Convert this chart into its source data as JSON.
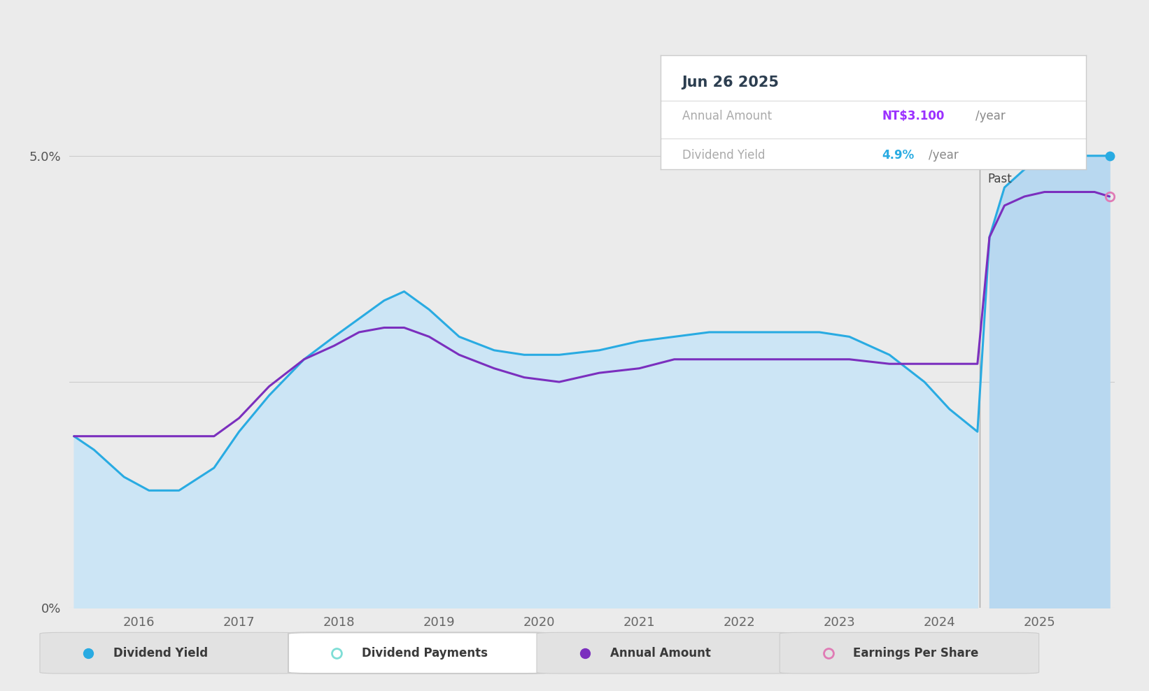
{
  "bg_color": "#ebebeb",
  "plot_bg_color": "#ebebeb",
  "dividend_yield_color": "#29ABE2",
  "dividend_yield_fill": "#d6eaf8",
  "annual_amount_color": "#7B2FBE",
  "past_x": 2024.4,
  "tooltip_date": "Jun 26 2025",
  "tooltip_annual_amount": "NT$3.100",
  "tooltip_dividend_yield": "4.9%",
  "tooltip_annual_color": "#9B30FF",
  "tooltip_yield_color": "#29ABE2",
  "legend_items": [
    {
      "label": "Dividend Yield",
      "color": "#29ABE2",
      "filled": true,
      "active": true
    },
    {
      "label": "Dividend Payments",
      "color": "#7FDED6",
      "filled": false,
      "active": false
    },
    {
      "label": "Annual Amount",
      "color": "#7B2FBE",
      "filled": true,
      "active": true
    },
    {
      "label": "Earnings Per Share",
      "color": "#e07bb5",
      "filled": false,
      "active": true
    }
  ],
  "xlim_start": 2015.3,
  "xlim_end": 2025.75,
  "ylim": [
    0.0,
    5.5
  ],
  "ytick_positions": [
    0.0,
    2.5,
    5.0
  ],
  "ytick_labels": [
    "0%",
    "",
    "5.0%"
  ],
  "xtick_years": [
    2016,
    2017,
    2018,
    2019,
    2020,
    2021,
    2022,
    2023,
    2024,
    2025
  ],
  "dividend_yield_x": [
    2015.35,
    2015.55,
    2015.85,
    2016.1,
    2016.4,
    2016.75,
    2017.0,
    2017.3,
    2017.65,
    2017.95,
    2018.2,
    2018.45,
    2018.65,
    2018.9,
    2019.2,
    2019.55,
    2019.85,
    2020.2,
    2020.6,
    2021.0,
    2021.35,
    2021.7,
    2022.0,
    2022.4,
    2022.8,
    2023.1,
    2023.5,
    2023.85,
    2024.1,
    2024.38,
    2024.5,
    2024.65,
    2024.85,
    2025.05,
    2025.3,
    2025.55,
    2025.7
  ],
  "dividend_yield_y": [
    1.9,
    1.75,
    1.45,
    1.3,
    1.3,
    1.55,
    1.95,
    2.35,
    2.75,
    3.0,
    3.2,
    3.4,
    3.5,
    3.3,
    3.0,
    2.85,
    2.8,
    2.8,
    2.85,
    2.95,
    3.0,
    3.05,
    3.05,
    3.05,
    3.05,
    3.0,
    2.8,
    2.5,
    2.2,
    1.95,
    4.1,
    4.65,
    4.85,
    4.95,
    5.0,
    5.0,
    5.0
  ],
  "annual_amount_x": [
    2015.35,
    2015.55,
    2015.85,
    2016.1,
    2016.4,
    2016.75,
    2017.0,
    2017.3,
    2017.65,
    2017.95,
    2018.2,
    2018.45,
    2018.65,
    2018.9,
    2019.2,
    2019.55,
    2019.85,
    2020.2,
    2020.6,
    2021.0,
    2021.35,
    2021.7,
    2022.0,
    2022.4,
    2022.8,
    2023.1,
    2023.5,
    2023.85,
    2024.1,
    2024.38,
    2024.5,
    2024.65,
    2024.85,
    2025.05,
    2025.3,
    2025.55,
    2025.7
  ],
  "annual_amount_y": [
    1.9,
    1.9,
    1.9,
    1.9,
    1.9,
    1.9,
    2.1,
    2.45,
    2.75,
    2.9,
    3.05,
    3.1,
    3.1,
    3.0,
    2.8,
    2.65,
    2.55,
    2.5,
    2.6,
    2.65,
    2.75,
    2.75,
    2.75,
    2.75,
    2.75,
    2.75,
    2.7,
    2.7,
    2.7,
    2.7,
    4.1,
    4.45,
    4.55,
    4.6,
    4.6,
    4.6,
    4.55
  ]
}
